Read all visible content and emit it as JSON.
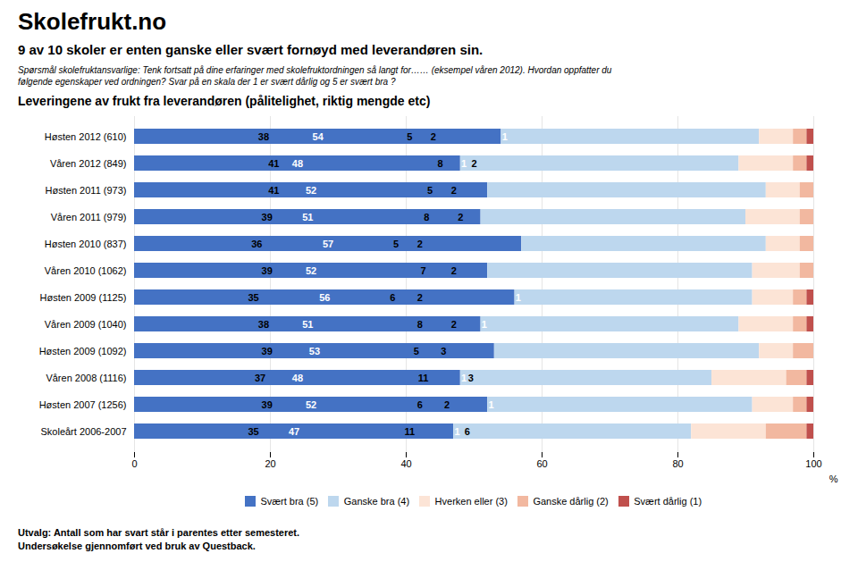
{
  "chart_data": {
    "type": "bar",
    "orientation": "horizontal",
    "stacked": true,
    "data_labels": true,
    "header": "Skolefrukt.no",
    "subtitle": "9 av 10 skoler er enten ganske eller svært fornøyd med leverandøren sin.",
    "question": [
      "Spørsmål skolefruktansvarlige:  Tenk fortsatt på dine erfaringer med skolefruktordningen så langt for…… (eksempel våren 2012). Hvordan oppfatter du",
      "følgende egenskaper ved ordningen? Svar på en skala der 1 er svært dårlig og 5 er svært bra ?"
    ],
    "title": "Leveringene av frukt fra leverandøren (pålitelighet, riktig mengde etc)",
    "categories": [
      "Høsten 2012 (610)",
      "Våren 2012 (849)",
      "Høsten 2011 (973)",
      "Våren 2011 (979)",
      "Høsten 2010 (837)",
      "Våren 2010 (1062)",
      "Høsten 2009 (1125)",
      "Våren 2009 (1040)",
      "Høsten 2009 (1092)",
      "Våren 2008 (1116)",
      "Høsten 2007 (1256)",
      "Skoleårt 2006-2007"
    ],
    "series": [
      {
        "name": "Svært bra (5)",
        "color": "#4472C4",
        "values": [
          54,
          48,
          52,
          51,
          57,
          52,
          56,
          51,
          53,
          48,
          52,
          47
        ]
      },
      {
        "name": "Ganske bra (4)",
        "color": "#BDD7EE",
        "values": [
          38,
          41,
          41,
          39,
          36,
          39,
          35,
          38,
          39,
          37,
          39,
          35
        ]
      },
      {
        "name": "Hverken eller (3)",
        "color": "#FCE4D6",
        "values": [
          5,
          8,
          5,
          8,
          5,
          7,
          6,
          8,
          5,
          11,
          6,
          11
        ]
      },
      {
        "name": "Ganske dårlig (2)",
        "color": "#F2B8A0",
        "values": [
          2,
          2,
          2,
          2,
          2,
          2,
          2,
          2,
          3,
          3,
          2,
          6
        ]
      },
      {
        "name": "Svært dårlig (1)",
        "color": "#C0504D",
        "values": [
          1,
          1,
          0,
          0,
          0,
          0,
          1,
          1,
          0,
          1,
          1,
          1
        ]
      }
    ],
    "xlabel": "%",
    "xlim": [
      0,
      100
    ],
    "xticks": [
      0,
      20,
      40,
      60,
      80,
      100
    ],
    "grid": true,
    "legend": "bottom",
    "caption": [
      "Utvalg:  Antall som har svart står i parentes etter semesteret.",
      "Undersøkelse gjennomført ved bruk av Questback."
    ]
  }
}
